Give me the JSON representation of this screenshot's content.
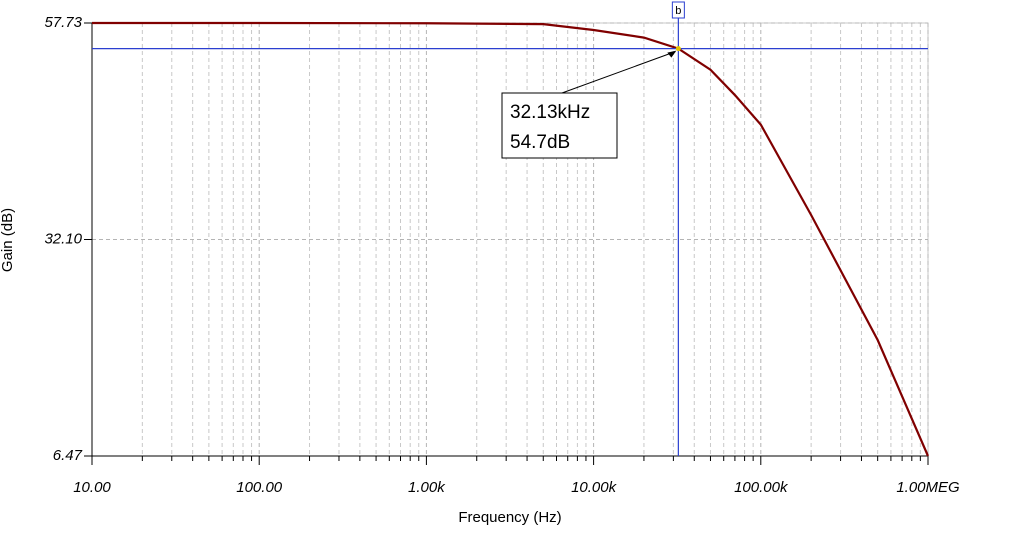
{
  "chart_data": {
    "type": "line",
    "xscale": "log",
    "ylabel": "Gain (dB)",
    "xlabel": "Frequency (Hz)",
    "xlim": [
      10,
      1000000
    ],
    "xticks": [
      {
        "value": 10,
        "label": "10.00"
      },
      {
        "value": 100,
        "label": "100.00"
      },
      {
        "value": 1000,
        "label": "1.00k"
      },
      {
        "value": 10000,
        "label": "10.00k"
      },
      {
        "value": 100000,
        "label": "100.00k"
      },
      {
        "value": 1000000,
        "label": "1.00MEG"
      }
    ],
    "xminorticks": [
      20,
      30,
      40,
      50,
      60,
      70,
      80,
      90,
      200,
      300,
      400,
      500,
      600,
      700,
      800,
      900,
      2000,
      3000,
      4000,
      5000,
      6000,
      7000,
      8000,
      9000,
      20000,
      30000,
      40000,
      50000,
      60000,
      70000,
      80000,
      90000,
      200000,
      300000,
      400000,
      500000,
      600000,
      700000,
      800000,
      900000
    ],
    "ylim": [
      6.47,
      57.73
    ],
    "yticks": [
      6.47,
      {
        "value": 32.1,
        "label": "32.10"
      },
      57.73
    ],
    "grid": true,
    "series": [
      {
        "color": "#800000",
        "x": [
          10,
          100,
          1000,
          5000,
          10000,
          20000,
          32130,
          50000,
          70000,
          100000,
          200000,
          500000,
          1000000
        ],
        "values": [
          57.73,
          57.73,
          57.7,
          57.6,
          56.9,
          56.0,
          54.7,
          52.2,
          49.2,
          45.7,
          35.0,
          20.2,
          6.47
        ]
      }
    ],
    "cursor": {
      "name": "b",
      "color": "#2b3fd0",
      "x": 32130,
      "y": 54.7,
      "labels": [
        "32.13kHz",
        "54.7dB"
      ]
    }
  }
}
